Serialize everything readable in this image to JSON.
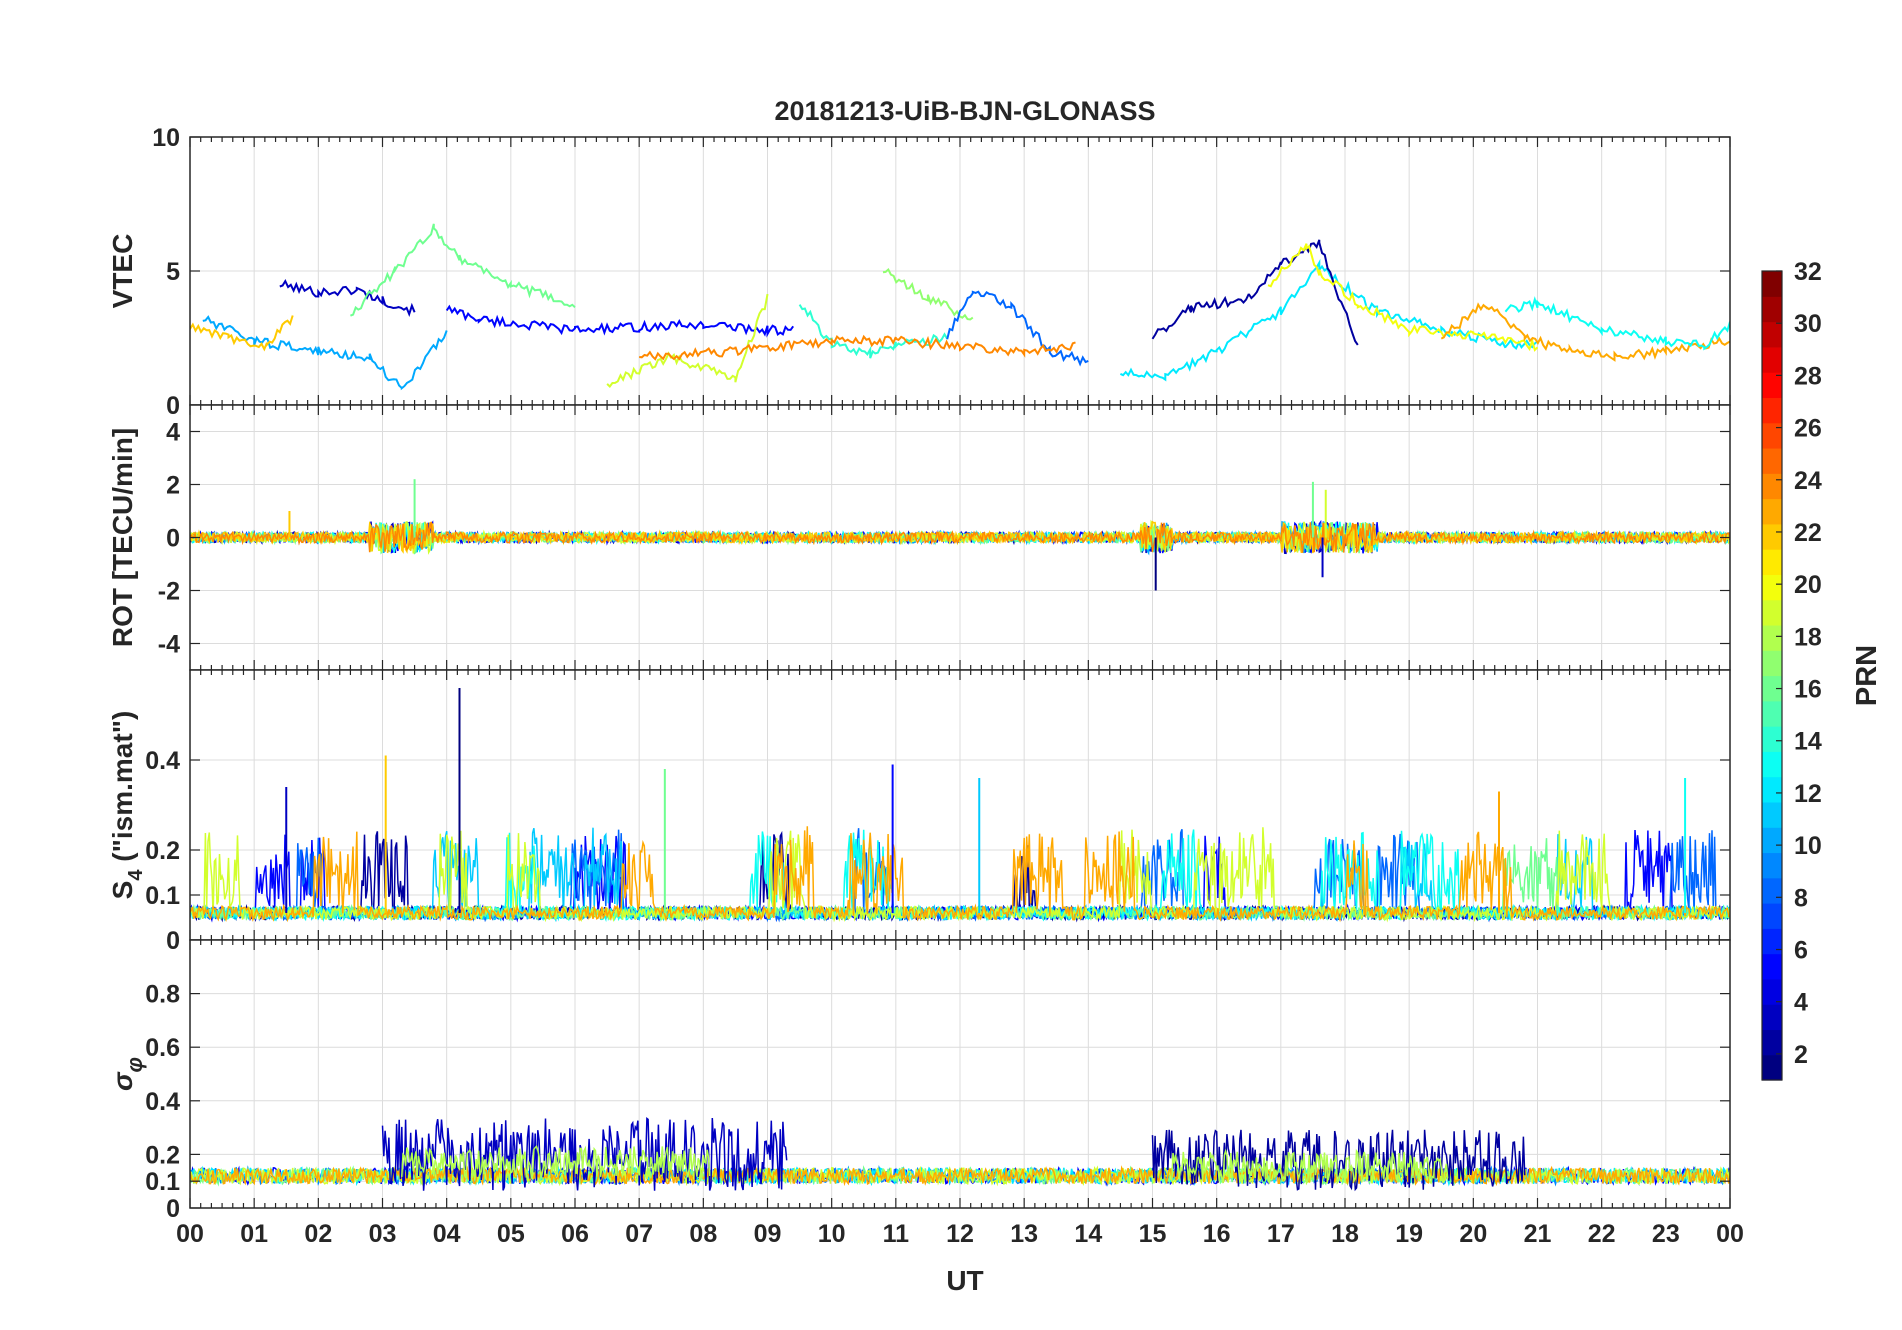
{
  "chart_data": {
    "type": "line",
    "title": "20181213-UiB-BJN-GLONASS",
    "xlabel": "UT",
    "x_unit": "hour UT",
    "xlim": [
      0,
      24
    ],
    "x_tick_labels": [
      "00",
      "01",
      "02",
      "03",
      "04",
      "05",
      "06",
      "07",
      "08",
      "09",
      "10",
      "11",
      "12",
      "13",
      "14",
      "15",
      "16",
      "17",
      "18",
      "19",
      "20",
      "21",
      "22",
      "23",
      "00"
    ],
    "panels": [
      {
        "key": "vtec",
        "ylabel": "VTEC",
        "ylim": [
          0,
          10
        ],
        "yticks": [
          0,
          5,
          10
        ],
        "ytick_labels": [
          "0",
          "5",
          "10"
        ],
        "series": [
          {
            "prn": 3,
            "x": [
              1.4,
              2,
              2.6,
              3.0,
              3.5
            ],
            "y": [
              4.5,
              4.2,
              4.3,
              3.9,
              3.5
            ]
          },
          {
            "prn": 5,
            "x": [
              4.0,
              4.5,
              5.2,
              6.0,
              7.0,
              8.0,
              9.0,
              9.4
            ],
            "y": [
              3.6,
              3.2,
              3.0,
              2.8,
              2.9,
              3.0,
              2.8,
              2.8
            ]
          },
          {
            "prn": 16,
            "x": [
              2.5,
              3.2,
              3.8,
              4.2,
              5.0,
              6.0
            ],
            "y": [
              3.4,
              5.0,
              6.6,
              5.5,
              4.5,
              3.7
            ]
          },
          {
            "prn": 10,
            "x": [
              0.2,
              1.0,
              2.0,
              2.8,
              3.3,
              4.0
            ],
            "y": [
              3.2,
              2.4,
              2.0,
              1.8,
              0.6,
              2.7
            ]
          },
          {
            "prn": 22,
            "x": [
              0.0,
              0.6,
              1.2,
              1.6
            ],
            "y": [
              2.9,
              2.5,
              2.2,
              3.3
            ]
          },
          {
            "prn": 14,
            "x": [
              9.5,
              10.0,
              10.6,
              11.0,
              11.8
            ],
            "y": [
              3.8,
              2.3,
              1.9,
              2.2,
              2.5
            ]
          },
          {
            "prn": 17,
            "x": [
              10.8,
              11.5,
              12.2
            ],
            "y": [
              5.0,
              4.0,
              3.2
            ]
          },
          {
            "prn": 8,
            "x": [
              11.8,
              12.2,
              12.8,
              13.4,
              14.0
            ],
            "y": [
              2.5,
              4.3,
              3.7,
              2.0,
              1.6
            ]
          },
          {
            "prn": 12,
            "x": [
              14.5,
              15.2,
              16.0,
              17.0,
              17.6,
              18.5,
              19.5,
              20.5,
              21.0
            ],
            "y": [
              1.2,
              1.0,
              2.0,
              3.5,
              5.2,
              3.5,
              2.8,
              2.3,
              2.2
            ]
          },
          {
            "prn": 2,
            "x": [
              15.0,
              15.6,
              16.5,
              17.0,
              17.6,
              18.2
            ],
            "y": [
              2.5,
              3.6,
              4.0,
              5.3,
              6.0,
              2.2
            ]
          },
          {
            "prn": 20,
            "x": [
              16.8,
              17.4,
              17.6,
              18.2,
              19.0,
              20.0,
              21.0
            ],
            "y": [
              4.5,
              6.0,
              5.0,
              3.8,
              2.8,
              2.6,
              2.2
            ]
          },
          {
            "prn": 23,
            "x": [
              19.5,
              20.2,
              20.8,
              21.5,
              22.2,
              23.0,
              24.0
            ],
            "y": [
              2.5,
              3.8,
              2.5,
              2.0,
              1.8,
              2.0,
              2.4
            ]
          },
          {
            "prn": 13,
            "x": [
              20.5,
              21.0,
              22.0,
              23.0,
              23.6,
              24.0
            ],
            "y": [
              3.5,
              3.8,
              2.8,
              2.4,
              2.2,
              3.0
            ]
          },
          {
            "prn": 19,
            "x": [
              6.5,
              7.5,
              8.5,
              9.0
            ],
            "y": [
              0.8,
              1.8,
              1.0,
              4.0
            ]
          },
          {
            "prn": 24,
            "x": [
              7.0,
              8.5,
              10.0,
              11.0,
              12.0,
              13.0,
              13.8
            ],
            "y": [
              1.8,
              2.0,
              2.4,
              2.4,
              2.2,
              2.0,
              2.2
            ]
          }
        ]
      },
      {
        "key": "rot",
        "ylabel": "ROT [TECU/min]",
        "ylim": [
          -5,
          5
        ],
        "yticks": [
          -4,
          -2,
          0,
          2,
          4
        ],
        "ytick_labels": [
          "-4",
          "-2",
          "0",
          "2",
          "4"
        ],
        "spikes": [
          {
            "prn": 1,
            "x": 15.05,
            "y": -2.0
          },
          {
            "prn": 16,
            "x": 3.5,
            "y": 2.2
          },
          {
            "prn": 16,
            "x": 17.5,
            "y": 2.1
          },
          {
            "prn": 3,
            "x": 17.65,
            "y": -1.5
          },
          {
            "prn": 22,
            "x": 1.55,
            "y": 1.0
          },
          {
            "prn": 19,
            "x": 17.7,
            "y": 1.8
          }
        ],
        "typical_amplitude": 0.2
      },
      {
        "key": "s4",
        "ylabel": "S4 (\"ism.mat\")",
        "ylabel_main": "S",
        "ylabel_sub": "4",
        "ylabel_rest": " (\"ism.mat\")",
        "ylim": [
          0,
          0.6
        ],
        "yticks": [
          0,
          0.1,
          0.2,
          0.4
        ],
        "ytick_labels": [
          "0",
          "0.1",
          "0.2",
          "0.4"
        ],
        "baseline": 0.06,
        "peaks": [
          {
            "prn": 1,
            "x": 4.2,
            "y": 0.56
          },
          {
            "prn": 5,
            "x": 10.95,
            "y": 0.39
          },
          {
            "prn": 22,
            "x": 3.05,
            "y": 0.41
          },
          {
            "prn": 16,
            "x": 7.4,
            "y": 0.38
          },
          {
            "prn": 11,
            "x": 12.3,
            "y": 0.36
          },
          {
            "prn": 13,
            "x": 23.3,
            "y": 0.36
          },
          {
            "prn": 23,
            "x": 20.4,
            "y": 0.33
          },
          {
            "prn": 3,
            "x": 1.5,
            "y": 0.34
          }
        ]
      },
      {
        "key": "sigma",
        "ylabel": "σ_φ",
        "ylim": [
          0,
          1
        ],
        "yticks": [
          0,
          0.1,
          0.2,
          0.4,
          0.6,
          0.8
        ],
        "ytick_labels": [
          "0",
          "0.1",
          "0.2",
          "0.4",
          "0.6",
          "0.8"
        ],
        "baseline": 0.12,
        "active_segments": [
          {
            "prn": 3,
            "x0": 3.0,
            "x1": 9.3,
            "level": 0.2,
            "peak": 0.37
          },
          {
            "prn": 2,
            "x0": 15.0,
            "x1": 20.8,
            "level": 0.18,
            "peak": 0.32
          }
        ]
      }
    ],
    "colorbar": {
      "label": "PRN",
      "range": [
        1,
        32
      ],
      "ticks": [
        2,
        4,
        6,
        8,
        10,
        12,
        14,
        16,
        18,
        20,
        22,
        24,
        26,
        28,
        30,
        32
      ],
      "colormap": "jet"
    },
    "grid": true
  }
}
